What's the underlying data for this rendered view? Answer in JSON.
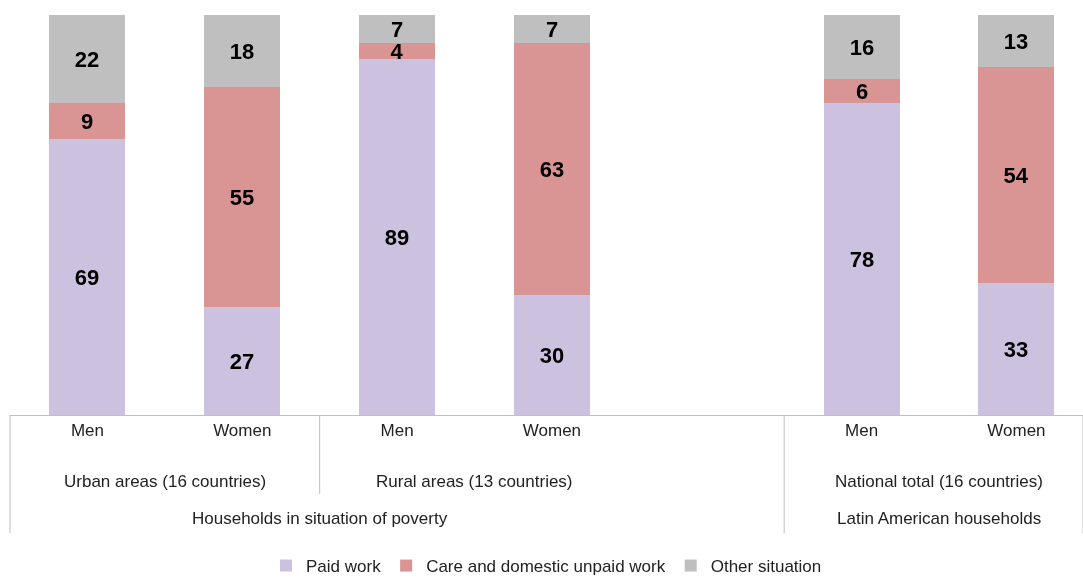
{
  "chart_data": {
    "type": "bar",
    "stacked": true,
    "data_labels": true,
    "grid": false,
    "legend": "bottom",
    "tick_labels": "x",
    "ylim": [
      0,
      100
    ],
    "categories": [
      "Men",
      "Women",
      "Men",
      "Women",
      null,
      "Men",
      "Women"
    ],
    "series": [
      {
        "name": "Paid work",
        "color": "#ccc1de",
        "values": [
          69,
          27,
          89,
          30,
          null,
          78,
          33
        ]
      },
      {
        "name": "Care and domestic unpaid work",
        "color": "#d99594",
        "values": [
          9,
          55,
          4,
          63,
          null,
          6,
          54
        ]
      },
      {
        "name": "Other situation",
        "color": "#bfbfbf",
        "values": [
          22,
          18,
          7,
          7,
          null,
          16,
          13
        ]
      }
    ],
    "annotations": [
      "Urban areas (16 countries)",
      "Rural areas (13 countries)",
      "National total (16 countries)",
      "Households in situation of poverty",
      "Latin American households"
    ]
  }
}
